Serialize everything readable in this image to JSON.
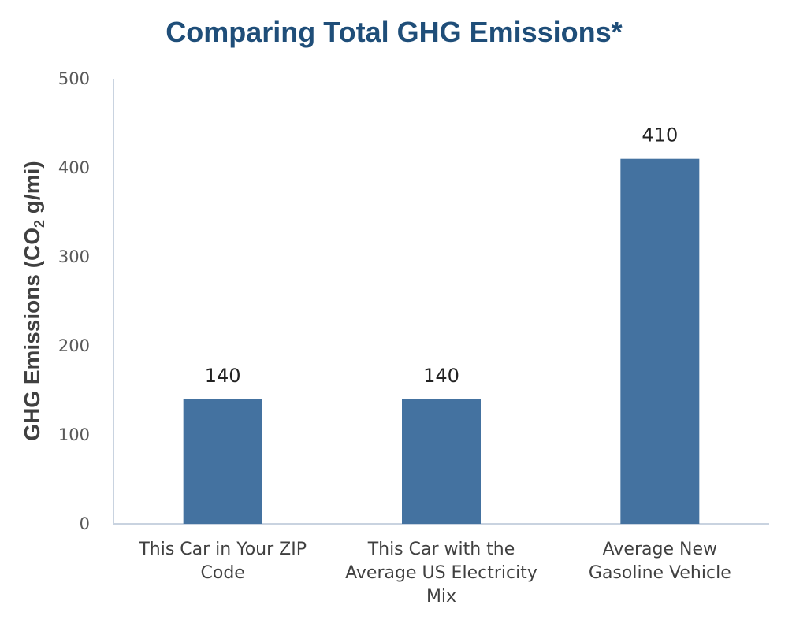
{
  "chart_data": {
    "type": "bar",
    "title": "Comparing Total GHG Emissions*",
    "ylabel": {
      "main": "GHG Emissions (CO",
      "sub": "2",
      "tail": " g/mi)"
    },
    "xlabel": "",
    "categories": [
      [
        "This Car in Your ZIP",
        "Code"
      ],
      [
        "This Car with the",
        "Average US Electricity",
        "Mix"
      ],
      [
        "Average New",
        "Gasoline Vehicle"
      ]
    ],
    "values": [
      140,
      140,
      410
    ],
    "data_labels": [
      "140",
      "140",
      "410"
    ],
    "ylim": [
      0,
      500
    ],
    "yticks": [
      0,
      100,
      200,
      300,
      400,
      500
    ],
    "grid": false,
    "legend": "none",
    "bar_color": "#4472a0"
  }
}
